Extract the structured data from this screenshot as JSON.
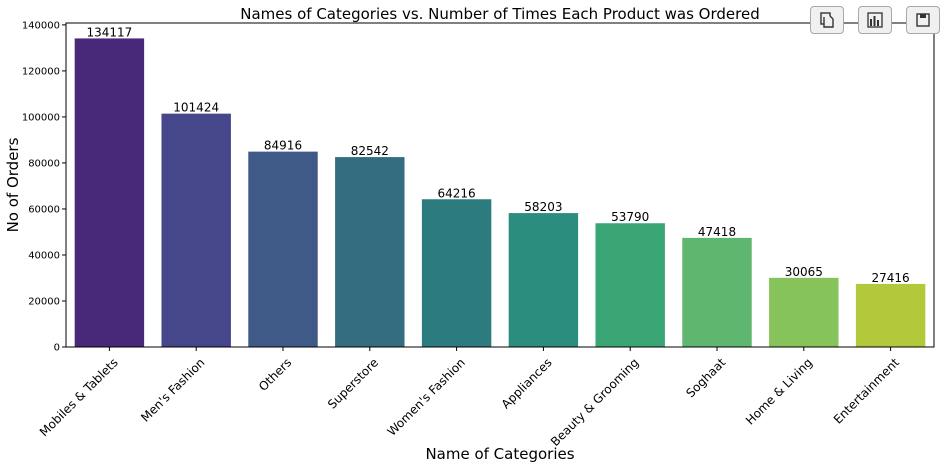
{
  "chart_data": {
    "type": "bar",
    "title": "Names of Categories vs. Number of Times Each Product was Ordered",
    "xlabel": "Name of Categories",
    "ylabel": "No of Orders",
    "categories": [
      "Mobiles & Tablets",
      "Men's Fashion",
      "Others",
      "Superstore",
      "Women's Fashion",
      "Appliances",
      "Beauty & Grooming",
      "Soghaat",
      "Home & Living",
      "Entertainment"
    ],
    "values": [
      134117,
      101424,
      84916,
      82542,
      64216,
      58203,
      53790,
      47418,
      30065,
      27416
    ],
    "data_labels": [
      "134117",
      "101424",
      "84916",
      "82542",
      "64216",
      "58203",
      "53790",
      "47418",
      "30065",
      "27416"
    ],
    "ylim": [
      0,
      140822
    ],
    "yticks": [
      0,
      20000,
      40000,
      60000,
      80000,
      100000,
      120000,
      140000
    ],
    "ytick_labels": [
      "0",
      "20000",
      "40000",
      "60000",
      "80000",
      "100000",
      "120000",
      "140000"
    ],
    "colors": [
      "#482878",
      "#46468a",
      "#3f5a86",
      "#356d80",
      "#2b7b7f",
      "#2b8d7e",
      "#3aa676",
      "#5fb66e",
      "#86c35a",
      "#b3c93b"
    ],
    "grid": false,
    "legend": "none"
  },
  "toolbar": {
    "icons": [
      "copy-icon",
      "bar-chart-icon",
      "save-icon"
    ]
  }
}
